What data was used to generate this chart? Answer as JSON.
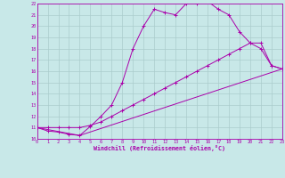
{
  "xlabel": "Windchill (Refroidissement éolien,°C)",
  "bg_color": "#c8e8e8",
  "grid_color": "#aacccc",
  "line_color": "#aa00aa",
  "xmin": 0,
  "xmax": 23,
  "ymin": 10,
  "ymax": 22,
  "line1_x": [
    0,
    1,
    2,
    3,
    4,
    5,
    6,
    7,
    8,
    9,
    10,
    11,
    12,
    13,
    14,
    15,
    16,
    17,
    18,
    19,
    20,
    21,
    22,
    23
  ],
  "line1_y": [
    11,
    10.7,
    10.6,
    10.4,
    10.3,
    11.1,
    12.0,
    13.0,
    15.0,
    18.0,
    20.0,
    21.5,
    21.2,
    21.0,
    22.0,
    22.0,
    22.2,
    21.5,
    21.0,
    19.5,
    18.5,
    18.0,
    16.5,
    16.2
  ],
  "line2_x": [
    0,
    1,
    2,
    3,
    4,
    5,
    6,
    7,
    8,
    9,
    10,
    11,
    12,
    13,
    14,
    15,
    16,
    17,
    18,
    19,
    20,
    21,
    22,
    23
  ],
  "line2_y": [
    11,
    11,
    11,
    11,
    11,
    11.2,
    11.5,
    12.0,
    12.5,
    13.0,
    13.5,
    14.0,
    14.5,
    15.0,
    15.5,
    16.0,
    16.5,
    17.0,
    17.5,
    18.0,
    18.5,
    18.5,
    16.5,
    16.2
  ],
  "line3_x": [
    0,
    4,
    23
  ],
  "line3_y": [
    11,
    10.3,
    16.2
  ],
  "ytick_vals": [
    10,
    11,
    12,
    13,
    14,
    15,
    16,
    17,
    18,
    19,
    20,
    21,
    22
  ],
  "xtick_vals": [
    0,
    1,
    2,
    3,
    4,
    5,
    6,
    7,
    8,
    9,
    10,
    11,
    12,
    13,
    14,
    15,
    16,
    17,
    18,
    19,
    20,
    21,
    22,
    23
  ]
}
